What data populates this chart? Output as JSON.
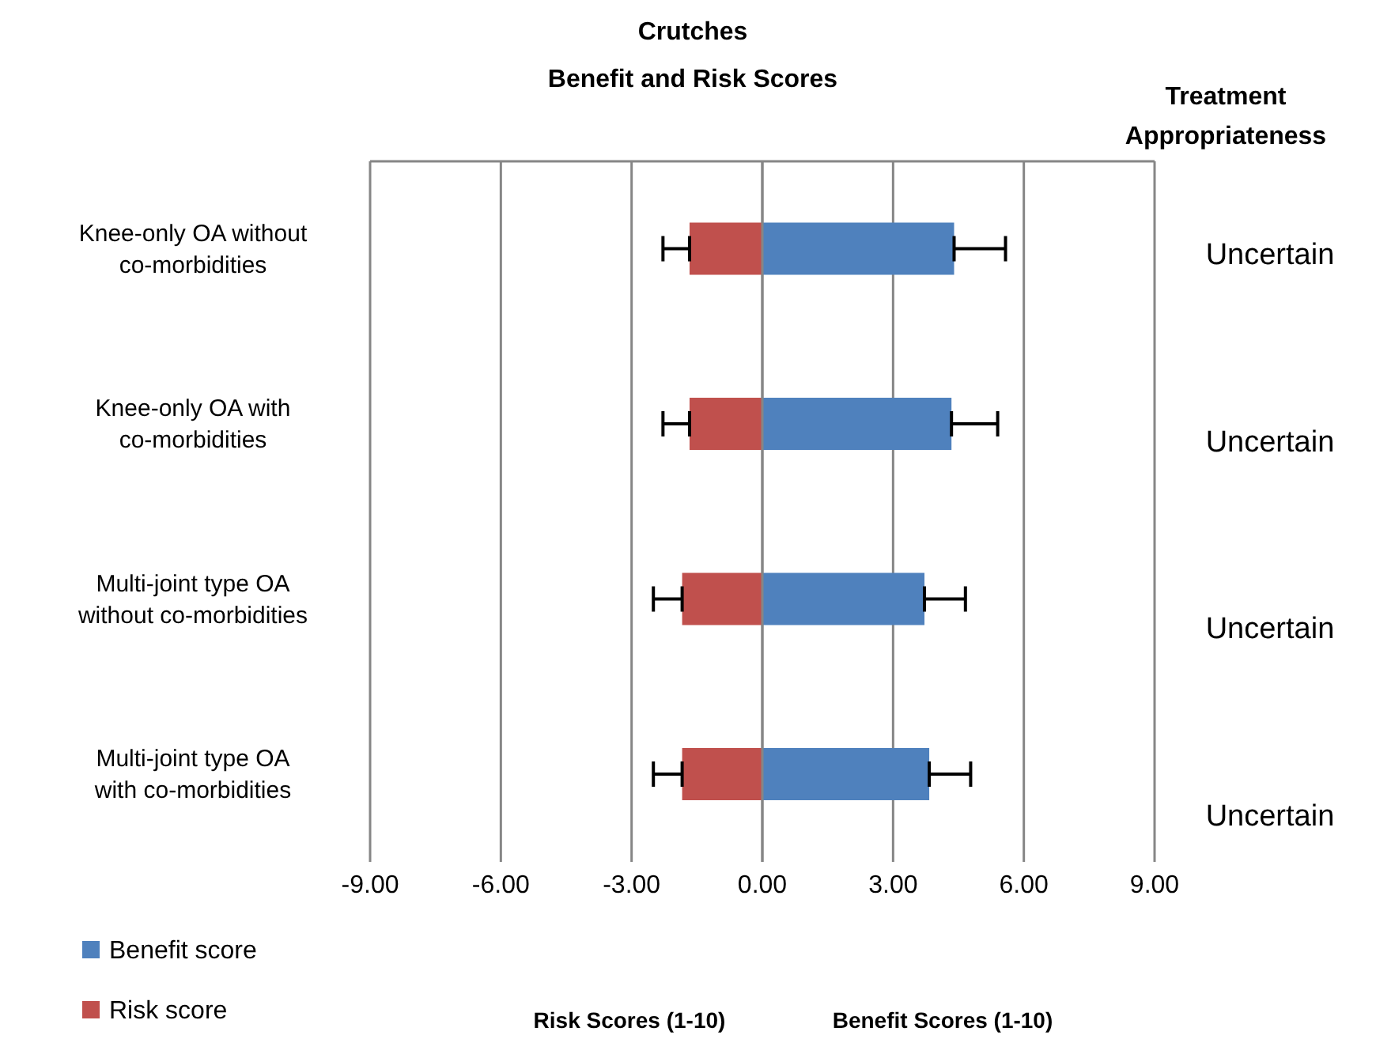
{
  "chart_data": {
    "type": "bar",
    "orientation": "horizontal",
    "stacked": true,
    "title": "Crutches",
    "subtitle": "Benefit and Risk Scores",
    "categories": [
      "Knee-only OA without co-morbidities",
      "Knee-only OA with co-morbidities",
      "Multi-joint type OA without co-morbidities",
      "Multi-joint type OA with co-morbidities"
    ],
    "series": [
      {
        "name": "Benefit score",
        "color": "#4f81bd",
        "values": [
          4.4,
          4.34,
          3.72,
          3.83
        ],
        "errors": [
          [
            4.4,
            5.58
          ],
          [
            4.34,
            5.4
          ],
          [
            3.72,
            4.66
          ],
          [
            3.83,
            4.78
          ]
        ]
      },
      {
        "name": "Risk score",
        "color": "#c0504d",
        "values": [
          -1.67,
          -1.67,
          -1.84,
          -1.84
        ],
        "errors": [
          [
            -2.28,
            -1.67
          ],
          [
            -2.28,
            -1.67
          ],
          [
            -2.5,
            -1.84
          ],
          [
            -2.5,
            -1.84
          ]
        ]
      }
    ],
    "xlim": [
      -9,
      9
    ],
    "xticks": [
      {
        "value": -9,
        "label": "-9.00"
      },
      {
        "value": -6,
        "label": "-6.00"
      },
      {
        "value": -3,
        "label": "-3.00"
      },
      {
        "value": 0,
        "label": "0.00"
      },
      {
        "value": 3,
        "label": "3.00"
      },
      {
        "value": 6,
        "label": "6.00"
      },
      {
        "value": 9,
        "label": "9.00"
      }
    ],
    "grid": "x",
    "legend": "bottom left",
    "annotations": [
      "Treatment Appropriateness",
      "Risk Scores (1-10)",
      "Benefit Scores (1-10)",
      "Uncertain",
      "Uncertain",
      "Uncertain",
      "Uncertain"
    ]
  }
}
